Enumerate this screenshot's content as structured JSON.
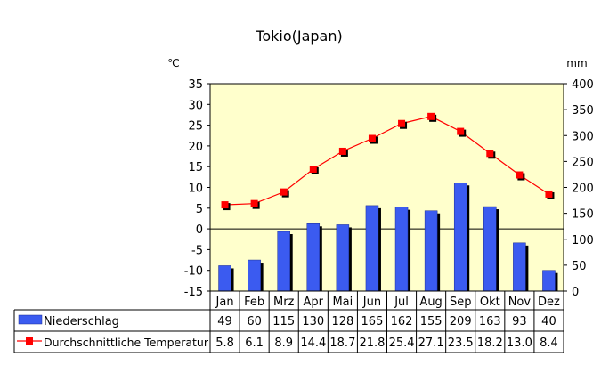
{
  "chart_data": {
    "type": "bar",
    "title": "Tokio(Japan)",
    "categories": [
      "Jan",
      "Feb",
      "Mrz",
      "Apr",
      "Mai",
      "Jun",
      "Jul",
      "Aug",
      "Sep",
      "Okt",
      "Nov",
      "Dez"
    ],
    "y_left_unit": "℃",
    "y_right_unit": "mm",
    "y_left_lim": [
      -15,
      35
    ],
    "y_left_ticks": [
      35,
      30,
      25,
      20,
      15,
      10,
      5,
      0,
      -5,
      -10,
      -15
    ],
    "y_right_lim": [
      0,
      400
    ],
    "y_right_ticks": [
      400,
      350,
      300,
      250,
      200,
      150,
      100,
      50,
      0
    ],
    "grid": false,
    "series": [
      {
        "name": "Niederschlag",
        "kind": "bar",
        "axis": "right",
        "values": [
          49,
          60,
          115,
          130,
          128,
          165,
          162,
          155,
          209,
          163,
          93,
          40
        ]
      },
      {
        "name": "Durchschnittliche Temperatur",
        "kind": "line",
        "axis": "left",
        "values": [
          5.8,
          6.1,
          8.9,
          14.4,
          18.7,
          21.8,
          25.4,
          27.1,
          23.5,
          18.2,
          13.0,
          8.4
        ],
        "value_labels": [
          "5.8",
          "6.1",
          "8.9",
          "14.4",
          "18.7",
          "21.8",
          "25.4",
          "27.1",
          "23.5",
          "18.2",
          "13.0",
          "8.4"
        ]
      }
    ],
    "colors": {
      "plot_bg": "#ffffcc",
      "bar": "#3b5bf0",
      "bar_shadow": "#000000",
      "line": "#ff0000",
      "marker": "#ff0000"
    }
  }
}
